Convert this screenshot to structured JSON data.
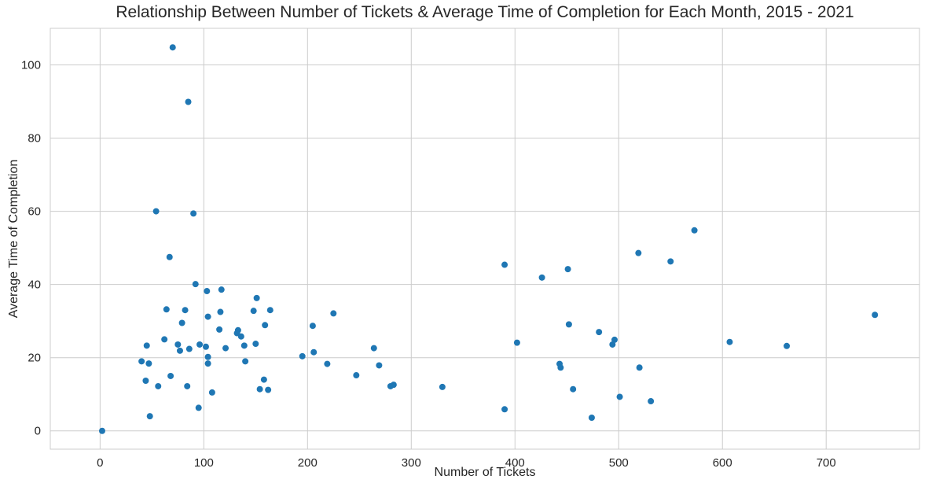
{
  "chart_data": {
    "type": "scatter",
    "title": "Relationship Between Number of Tickets & Average Time of Completion for Each Month, 2015 - 2021",
    "xlabel": "Number of Tickets",
    "ylabel": "Average Time of Completion",
    "xlim": [
      -48,
      790
    ],
    "ylim": [
      -5,
      110
    ],
    "xticks": [
      0,
      100,
      200,
      300,
      400,
      500,
      600,
      700
    ],
    "yticks": [
      0,
      20,
      40,
      60,
      80,
      100
    ],
    "grid": true,
    "marker_color": "#1f77b4",
    "series": [
      {
        "points": [
          [
            2,
            0
          ],
          [
            40,
            19
          ],
          [
            44,
            13.7
          ],
          [
            45,
            23.3
          ],
          [
            47,
            18.4
          ],
          [
            48,
            4
          ],
          [
            54,
            60
          ],
          [
            56,
            12.2
          ],
          [
            62,
            25
          ],
          [
            64,
            33.2
          ],
          [
            67,
            47.5
          ],
          [
            68,
            15
          ],
          [
            70,
            104.8
          ],
          [
            75,
            23.6
          ],
          [
            77,
            21.9
          ],
          [
            79,
            29.5
          ],
          [
            82,
            33
          ],
          [
            84,
            12.2
          ],
          [
            85,
            89.9
          ],
          [
            86,
            22.4
          ],
          [
            90,
            59.4
          ],
          [
            92,
            40.1
          ],
          [
            95,
            6.3
          ],
          [
            96,
            23.6
          ],
          [
            102,
            23
          ],
          [
            103,
            38.2
          ],
          [
            104,
            31.2
          ],
          [
            104,
            20.2
          ],
          [
            104,
            18.4
          ],
          [
            108,
            10.5
          ],
          [
            115,
            27.7
          ],
          [
            116,
            32.5
          ],
          [
            117,
            38.6
          ],
          [
            121,
            22.6
          ],
          [
            132,
            26.7
          ],
          [
            133,
            27.5
          ],
          [
            136,
            25.8
          ],
          [
            139,
            23.3
          ],
          [
            140,
            19
          ],
          [
            148,
            32.8
          ],
          [
            150,
            23.8
          ],
          [
            151,
            36.3
          ],
          [
            154,
            11.4
          ],
          [
            158,
            14
          ],
          [
            159,
            28.9
          ],
          [
            162,
            11.2
          ],
          [
            164,
            33
          ],
          [
            195,
            20.4
          ],
          [
            205,
            28.7
          ],
          [
            206,
            21.5
          ],
          [
            219,
            18.3
          ],
          [
            225,
            32.1
          ],
          [
            247,
            15.2
          ],
          [
            264,
            22.6
          ],
          [
            269,
            17.9
          ],
          [
            280,
            12.2
          ],
          [
            283,
            12.6
          ],
          [
            330,
            12
          ],
          [
            390,
            45.4
          ],
          [
            390,
            5.9
          ],
          [
            402,
            24.1
          ],
          [
            426,
            41.9
          ],
          [
            443,
            18.3
          ],
          [
            444,
            17.3
          ],
          [
            451,
            44.2
          ],
          [
            452,
            29.1
          ],
          [
            456,
            11.4
          ],
          [
            474,
            3.6
          ],
          [
            481,
            27
          ],
          [
            494,
            23.6
          ],
          [
            496,
            24.9
          ],
          [
            501,
            9.3
          ],
          [
            519,
            48.6
          ],
          [
            520,
            17.3
          ],
          [
            531,
            8.1
          ],
          [
            550,
            46.3
          ],
          [
            573,
            54.8
          ],
          [
            607,
            24.3
          ],
          [
            662,
            23.2
          ],
          [
            747,
            31.7
          ]
        ]
      }
    ]
  }
}
